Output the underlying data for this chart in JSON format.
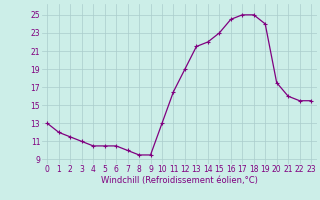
{
  "x": [
    0,
    1,
    2,
    3,
    4,
    5,
    6,
    7,
    8,
    9,
    10,
    11,
    12,
    13,
    14,
    15,
    16,
    17,
    18,
    19,
    20,
    21,
    22,
    23
  ],
  "y": [
    13,
    12,
    11.5,
    11,
    10.5,
    10.5,
    10.5,
    10,
    9.5,
    9.5,
    13,
    16.5,
    19,
    21.5,
    22,
    23,
    24.5,
    25,
    25,
    24,
    17.5,
    16,
    15.5,
    15.5
  ],
  "line_color": "#800080",
  "marker": "+",
  "marker_size": 3,
  "marker_lw": 0.8,
  "line_width": 0.9,
  "bg_color": "#cceee8",
  "grid_color": "#aacccc",
  "xlabel": "Windchill (Refroidissement éolien,°C)",
  "xlabel_color": "#800080",
  "tick_color": "#800080",
  "yticks": [
    9,
    11,
    13,
    15,
    17,
    19,
    21,
    23,
    25
  ],
  "ylim": [
    8.5,
    26.2
  ],
  "xlim": [
    -0.5,
    23.5
  ],
  "tick_fontsize": 5.5,
  "xlabel_fontsize": 6.0
}
